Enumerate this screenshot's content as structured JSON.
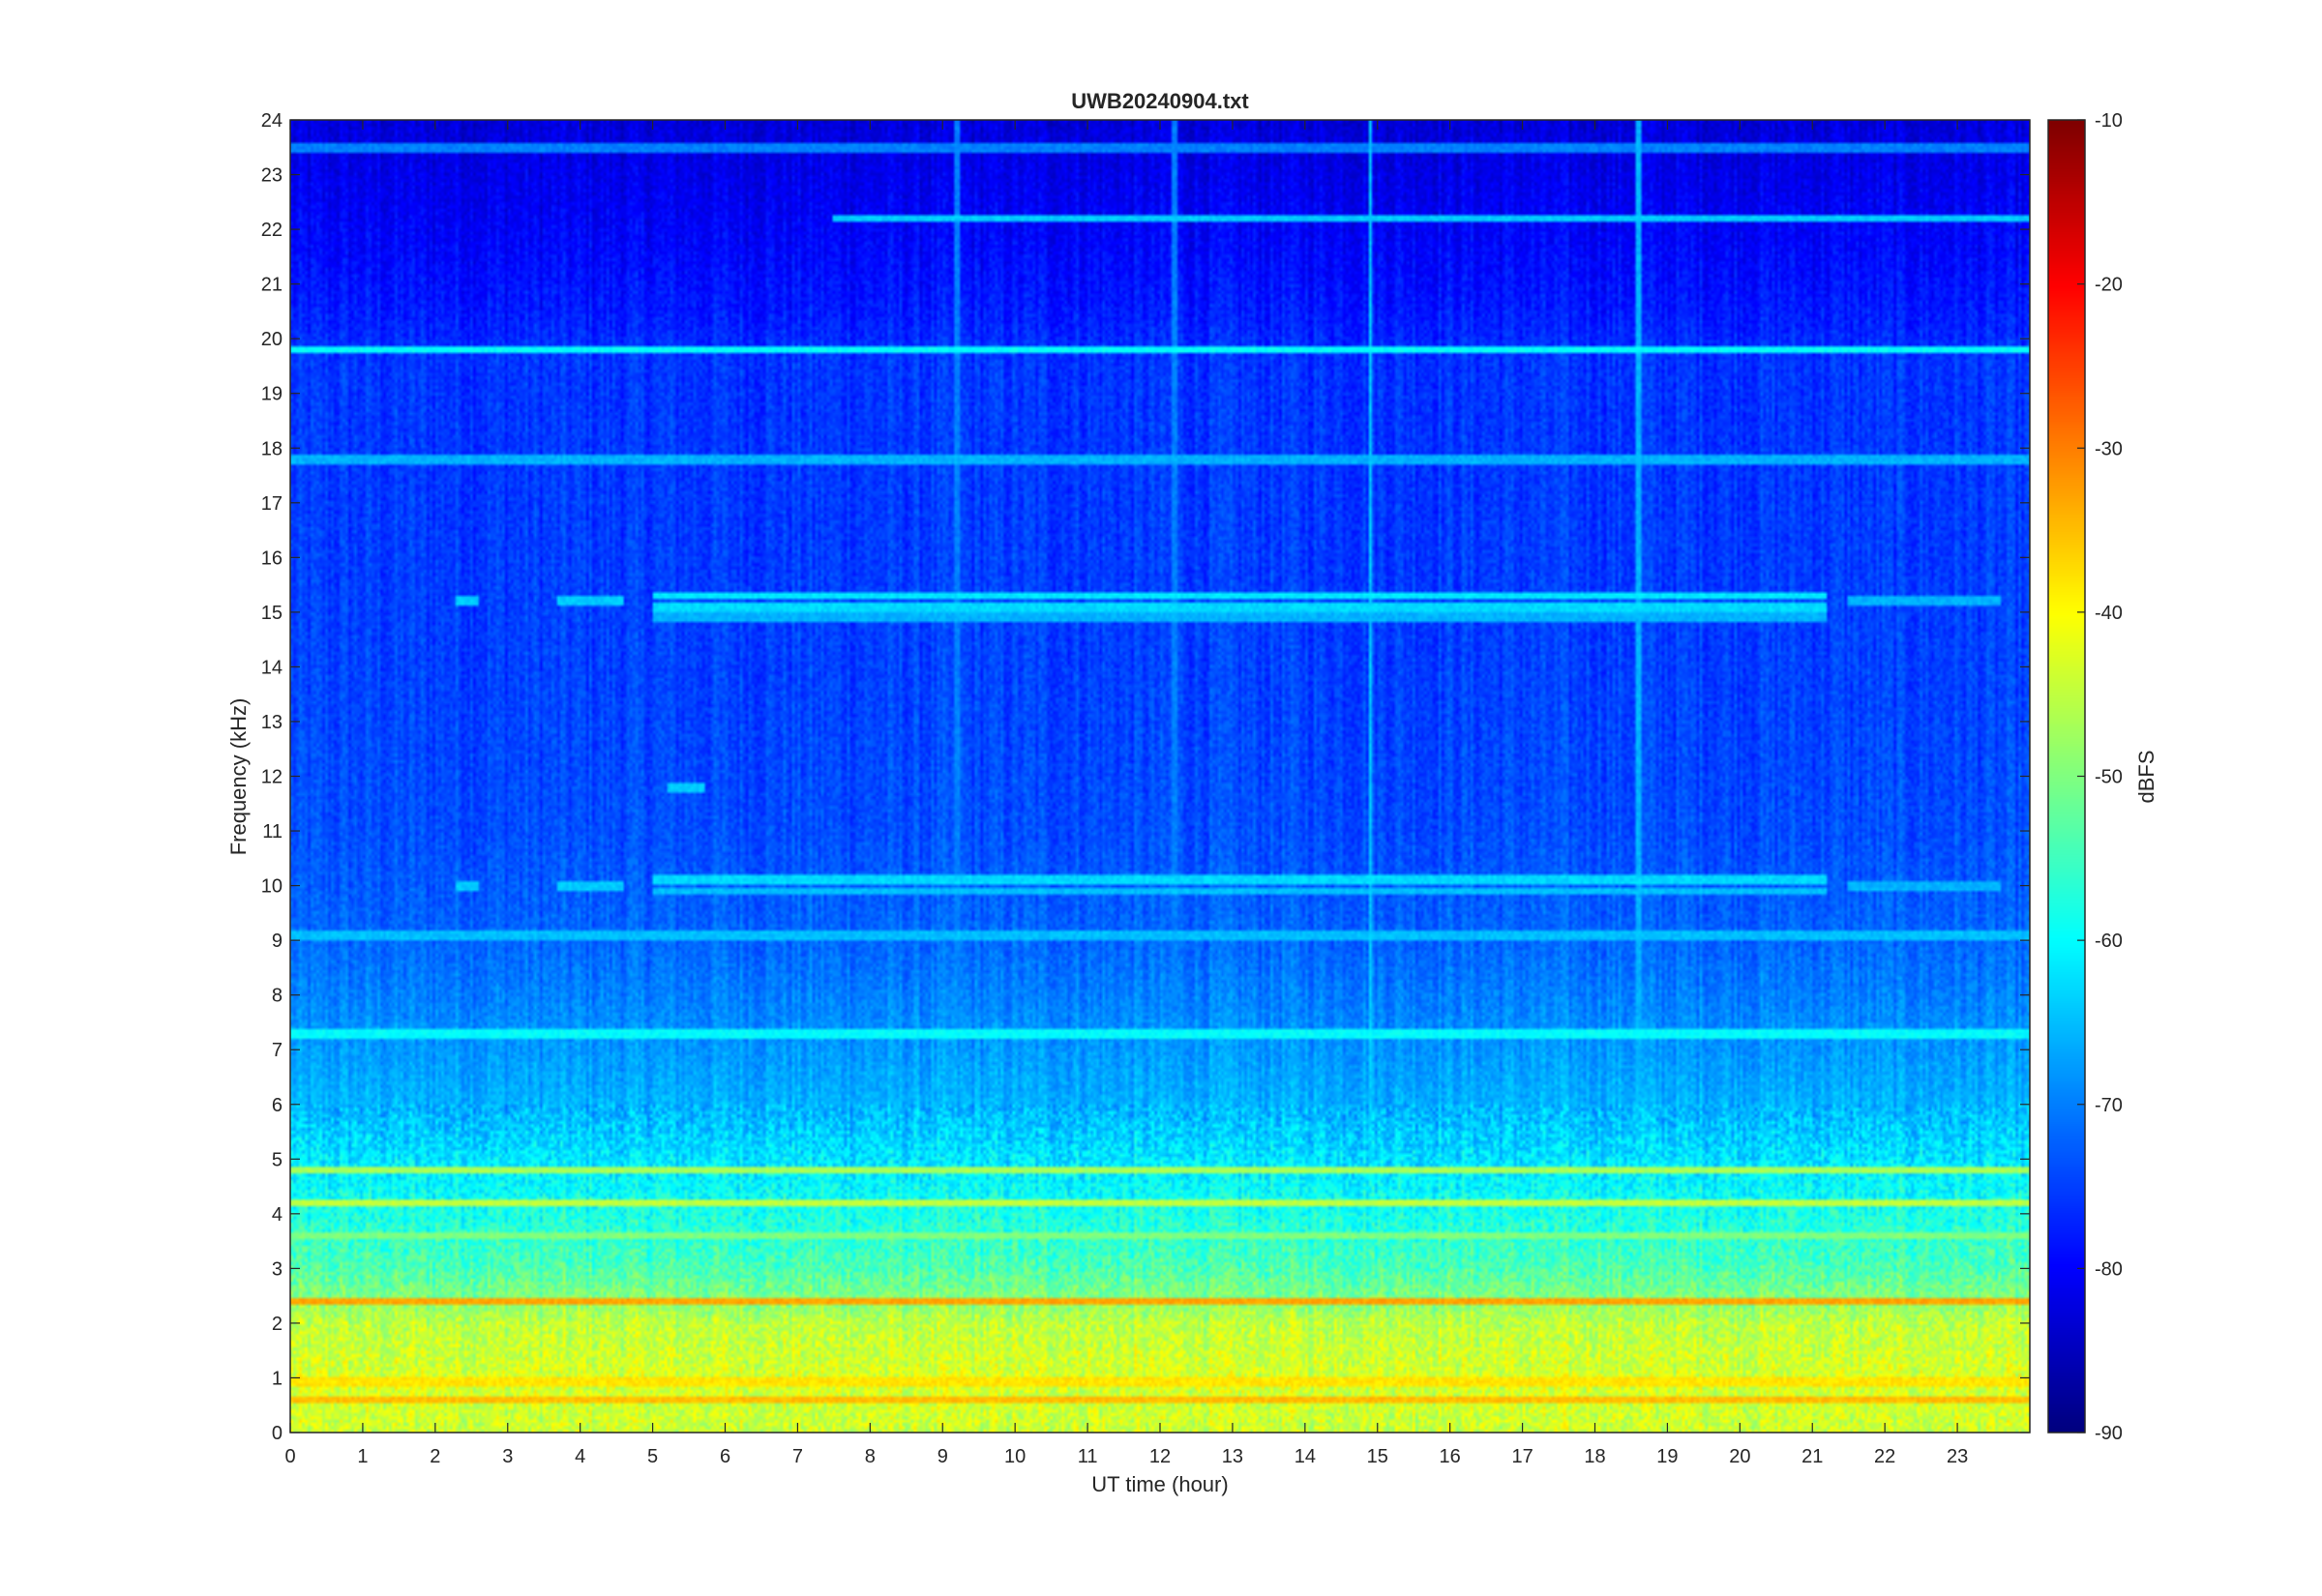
{
  "chart_data": {
    "type": "heatmap",
    "title": "UWB20240904.txt",
    "xlabel": "UT time (hour)",
    "ylabel": "Frequency (kHz)",
    "xlim": [
      0,
      24
    ],
    "ylim": [
      0,
      24
    ],
    "x_ticks": [
      "0",
      "1",
      "2",
      "3",
      "4",
      "5",
      "6",
      "7",
      "8",
      "9",
      "10",
      "11",
      "12",
      "13",
      "14",
      "15",
      "16",
      "17",
      "18",
      "19",
      "20",
      "21",
      "22",
      "23"
    ],
    "y_ticks": [
      "0",
      "1",
      "2",
      "3",
      "4",
      "5",
      "6",
      "7",
      "8",
      "9",
      "10",
      "11",
      "12",
      "13",
      "14",
      "15",
      "16",
      "17",
      "18",
      "19",
      "20",
      "21",
      "22",
      "23",
      "24"
    ],
    "colorbar": {
      "label": "dBFS",
      "colormap": "jet",
      "limits": [
        -90,
        -10
      ],
      "ticks": [
        "-90",
        "-80",
        "-70",
        "-60",
        "-50",
        "-40",
        "-30",
        "-20",
        "-10"
      ]
    },
    "background_dbfs_by_frequency": [
      {
        "khz": 0,
        "dbfs": -44
      },
      {
        "khz": 1,
        "dbfs": -43
      },
      {
        "khz": 2,
        "dbfs": -45
      },
      {
        "khz": 2.5,
        "dbfs": -50
      },
      {
        "khz": 3,
        "dbfs": -54
      },
      {
        "khz": 4,
        "dbfs": -58
      },
      {
        "khz": 5,
        "dbfs": -62
      },
      {
        "khz": 6,
        "dbfs": -66
      },
      {
        "khz": 7,
        "dbfs": -68
      },
      {
        "khz": 8,
        "dbfs": -70
      },
      {
        "khz": 9,
        "dbfs": -72
      },
      {
        "khz": 11,
        "dbfs": -74
      },
      {
        "khz": 14,
        "dbfs": -75
      },
      {
        "khz": 19.6,
        "dbfs": -76
      },
      {
        "khz": 20.5,
        "dbfs": -78
      },
      {
        "khz": 21.8,
        "dbfs": -80
      },
      {
        "khz": 24,
        "dbfs": -83
      }
    ],
    "persistent_lines": [
      {
        "khz": 19.8,
        "dbfs": -60,
        "t_start": 0,
        "t_end": 24
      },
      {
        "khz": 2.4,
        "dbfs": -33,
        "t_start": 0,
        "t_end": 24
      },
      {
        "khz": 0.6,
        "dbfs": -35,
        "t_start": 0,
        "t_end": 24
      },
      {
        "khz": 0.95,
        "dbfs": -38,
        "t_start": 0,
        "t_end": 24
      },
      {
        "khz": 4.2,
        "dbfs": -45,
        "t_start": 0,
        "t_end": 24
      },
      {
        "khz": 4.8,
        "dbfs": -47,
        "t_start": 0,
        "t_end": 24
      },
      {
        "khz": 3.6,
        "dbfs": -50,
        "t_start": 0,
        "t_end": 24
      },
      {
        "khz": 7.3,
        "dbfs": -60,
        "t_start": 0,
        "t_end": 24
      },
      {
        "khz": 9.1,
        "dbfs": -65,
        "t_start": 0,
        "t_end": 24
      },
      {
        "khz": 17.8,
        "dbfs": -66,
        "t_start": 0,
        "t_end": 24
      },
      {
        "khz": 22.2,
        "dbfs": -64,
        "t_start": 7.5,
        "t_end": 24
      },
      {
        "khz": 23.5,
        "dbfs": -70,
        "t_start": 0,
        "t_end": 24
      }
    ],
    "transmitter_bands": [
      {
        "khz": 15.3,
        "dbfs": -62,
        "t_start": 5,
        "t_end": 21.2
      },
      {
        "khz": 15.1,
        "dbfs": -63,
        "t_start": 5,
        "t_end": 21.2
      },
      {
        "khz": 14.9,
        "dbfs": -66,
        "t_start": 5,
        "t_end": 21.2
      },
      {
        "khz": 10.1,
        "dbfs": -63,
        "t_start": 5,
        "t_end": 21.2
      },
      {
        "khz": 9.9,
        "dbfs": -65,
        "t_start": 5,
        "t_end": 21.2
      },
      {
        "khz": 15.2,
        "dbfs": -64,
        "t_start": 2.3,
        "t_end": 2.6
      },
      {
        "khz": 10,
        "dbfs": -64,
        "t_start": 2.3,
        "t_end": 2.6
      },
      {
        "khz": 15.2,
        "dbfs": -64,
        "t_start": 3.7,
        "t_end": 4.6
      },
      {
        "khz": 10,
        "dbfs": -64,
        "t_start": 3.7,
        "t_end": 4.6
      },
      {
        "khz": 15.2,
        "dbfs": -66,
        "t_start": 21.5,
        "t_end": 23.6
      },
      {
        "khz": 10,
        "dbfs": -66,
        "t_start": 21.5,
        "t_end": 23.6
      },
      {
        "khz": 11.8,
        "dbfs": -64,
        "t_start": 5.2,
        "t_end": 5.7
      }
    ],
    "impulsive_verticals": [
      {
        "t": 14.9,
        "dbfs": -64
      },
      {
        "t": 18.6,
        "dbfs": -66
      },
      {
        "t": 9.2,
        "dbfs": -70
      },
      {
        "t": 12.2,
        "dbfs": -70
      }
    ]
  }
}
